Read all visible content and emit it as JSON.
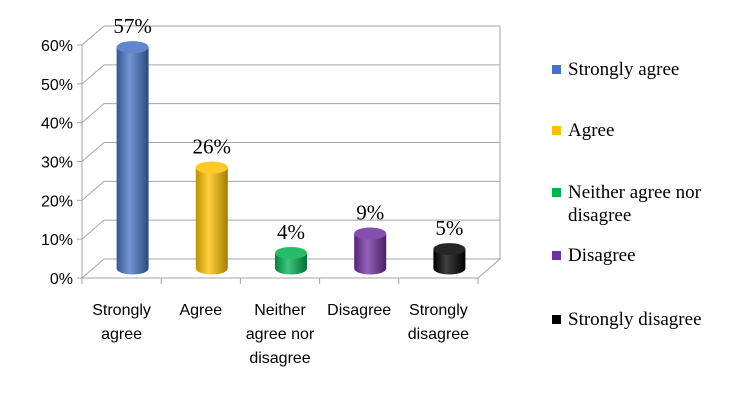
{
  "chart_data": {
    "type": "bar",
    "style": "3d-cylinder",
    "categories": [
      "Strongly agree",
      "Agree",
      "Neither agree nor disagree",
      "Disagree",
      "Strongly disagree"
    ],
    "values": [
      57,
      26,
      4,
      9,
      5
    ],
    "data_labels": [
      "57%",
      "26%",
      "4%",
      "9%",
      "5%"
    ],
    "colors": [
      "#4472c4",
      "#ffc000",
      "#00b050",
      "#7030a0",
      "#000000"
    ],
    "y_ticks": [
      "0%",
      "10%",
      "20%",
      "30%",
      "40%",
      "50%",
      "60%"
    ],
    "ylim": [
      0,
      60
    ],
    "grid": true,
    "legend": {
      "position": "right",
      "entries": [
        "Strongly agree",
        "Agree",
        "Neither agree nor disagree",
        "Disagree",
        "Strongly disagree"
      ]
    }
  }
}
